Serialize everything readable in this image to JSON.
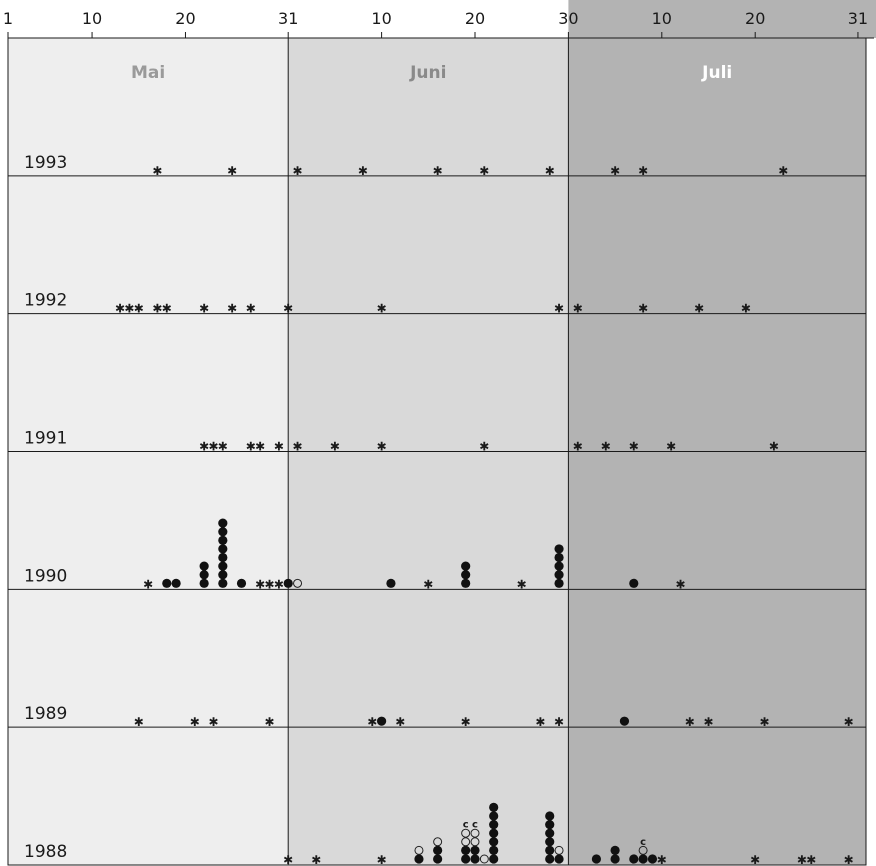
{
  "chart_data": {
    "type": "scatter",
    "months": [
      {
        "name": "Mai",
        "days": 31,
        "shade": "#eeeeee",
        "label_color": "#9a9a9a"
      },
      {
        "name": "Juni",
        "days": 30,
        "shade": "#d9d9d9",
        "label_color": "#8a8a8a"
      },
      {
        "name": "Juli",
        "days": 31,
        "shade": "#b3b3b3",
        "label_color": "#ffffff"
      }
    ],
    "tick_labels": [
      {
        "day": 1,
        "label": "1"
      },
      {
        "day": 10,
        "label": "10"
      },
      {
        "day": 20,
        "label": "20"
      },
      {
        "day": 31,
        "label": "31"
      },
      {
        "day": 41,
        "label": "10"
      },
      {
        "day": 51,
        "label": "20"
      },
      {
        "day": 61,
        "label": "30"
      },
      {
        "day": 71,
        "label": "10"
      },
      {
        "day": 81,
        "label": "20"
      },
      {
        "day": 92,
        "label": "31"
      }
    ],
    "line_color": "#1a1a1a",
    "years": [
      {
        "year": "1993",
        "points": [
          {
            "date": "1993-05-17",
            "kind": "star"
          },
          {
            "date": "1993-05-25",
            "kind": "star"
          },
          {
            "date": "1993-06-01",
            "kind": "star"
          },
          {
            "date": "1993-06-08",
            "kind": "star"
          },
          {
            "date": "1993-06-16",
            "kind": "star"
          },
          {
            "date": "1993-06-21",
            "kind": "star"
          },
          {
            "date": "1993-06-28",
            "kind": "star"
          },
          {
            "date": "1993-07-05",
            "kind": "star"
          },
          {
            "date": "1993-07-08",
            "kind": "star"
          },
          {
            "date": "1993-07-23",
            "kind": "star"
          }
        ]
      },
      {
        "year": "1992",
        "points": [
          {
            "date": "1992-05-13",
            "kind": "star"
          },
          {
            "date": "1992-05-14",
            "kind": "star"
          },
          {
            "date": "1992-05-15",
            "kind": "star"
          },
          {
            "date": "1992-05-17",
            "kind": "star"
          },
          {
            "date": "1992-05-18",
            "kind": "star"
          },
          {
            "date": "1992-05-22",
            "kind": "star"
          },
          {
            "date": "1992-05-25",
            "kind": "star"
          },
          {
            "date": "1992-05-27",
            "kind": "star"
          },
          {
            "date": "1992-05-31",
            "kind": "star"
          },
          {
            "date": "1992-06-10",
            "kind": "star"
          },
          {
            "date": "1992-06-29",
            "kind": "star"
          },
          {
            "date": "1992-07-01",
            "kind": "star"
          },
          {
            "date": "1992-07-08",
            "kind": "star"
          },
          {
            "date": "1992-07-14",
            "kind": "star"
          },
          {
            "date": "1992-07-19",
            "kind": "star"
          }
        ]
      },
      {
        "year": "1991",
        "points": [
          {
            "date": "1991-05-22",
            "kind": "star"
          },
          {
            "date": "1991-05-23",
            "kind": "star"
          },
          {
            "date": "1991-05-24",
            "kind": "star"
          },
          {
            "date": "1991-05-27",
            "kind": "star"
          },
          {
            "date": "1991-05-28",
            "kind": "star"
          },
          {
            "date": "1991-05-30",
            "kind": "star"
          },
          {
            "date": "1991-06-01",
            "kind": "star"
          },
          {
            "date": "1991-06-05",
            "kind": "star"
          },
          {
            "date": "1991-06-10",
            "kind": "star"
          },
          {
            "date": "1991-06-21",
            "kind": "star"
          },
          {
            "date": "1991-07-01",
            "kind": "star"
          },
          {
            "date": "1991-07-04",
            "kind": "star"
          },
          {
            "date": "1991-07-07",
            "kind": "star"
          },
          {
            "date": "1991-07-11",
            "kind": "star"
          },
          {
            "date": "1991-07-22",
            "kind": "star"
          }
        ]
      },
      {
        "year": "1990",
        "points": [
          {
            "date": "1990-05-16",
            "kind": "star"
          },
          {
            "date": "1990-05-18",
            "kind": "dot",
            "count": 1
          },
          {
            "date": "1990-05-19",
            "kind": "dot",
            "count": 1
          },
          {
            "date": "1990-05-22",
            "kind": "dot",
            "count": 3
          },
          {
            "date": "1990-05-24",
            "kind": "dot",
            "count": 8
          },
          {
            "date": "1990-05-26",
            "kind": "dot",
            "count": 1
          },
          {
            "date": "1990-05-28",
            "kind": "star"
          },
          {
            "date": "1990-05-29",
            "kind": "star"
          },
          {
            "date": "1990-05-30",
            "kind": "star"
          },
          {
            "date": "1990-05-31",
            "kind": "dot",
            "count": 1
          },
          {
            "date": "1990-06-01",
            "kind": "circle",
            "count": 1
          },
          {
            "date": "1990-06-11",
            "kind": "dot",
            "count": 1
          },
          {
            "date": "1990-06-15",
            "kind": "star"
          },
          {
            "date": "1990-06-19",
            "kind": "dot",
            "count": 3
          },
          {
            "date": "1990-06-25",
            "kind": "star"
          },
          {
            "date": "1990-06-29",
            "kind": "dot",
            "count": 5
          },
          {
            "date": "1990-07-07",
            "kind": "dot",
            "count": 1
          },
          {
            "date": "1990-07-12",
            "kind": "star"
          }
        ]
      },
      {
        "year": "1989",
        "points": [
          {
            "date": "1989-05-15",
            "kind": "star"
          },
          {
            "date": "1989-05-21",
            "kind": "star"
          },
          {
            "date": "1989-05-23",
            "kind": "star"
          },
          {
            "date": "1989-05-29",
            "kind": "star"
          },
          {
            "date": "1989-06-09",
            "kind": "star"
          },
          {
            "date": "1989-06-10",
            "kind": "dot",
            "count": 1
          },
          {
            "date": "1989-06-12",
            "kind": "star"
          },
          {
            "date": "1989-06-19",
            "kind": "star"
          },
          {
            "date": "1989-06-27",
            "kind": "star"
          },
          {
            "date": "1989-06-29",
            "kind": "star"
          },
          {
            "date": "1989-07-06",
            "kind": "dot",
            "count": 1
          },
          {
            "date": "1989-07-13",
            "kind": "star"
          },
          {
            "date": "1989-07-15",
            "kind": "star"
          },
          {
            "date": "1989-07-21",
            "kind": "star"
          },
          {
            "date": "1989-07-30",
            "kind": "star"
          }
        ]
      },
      {
        "year": "1988",
        "points": [
          {
            "date": "1988-05-31",
            "kind": "star"
          },
          {
            "date": "1988-06-03",
            "kind": "star"
          },
          {
            "date": "1988-06-10",
            "kind": "star"
          },
          {
            "date": "1988-06-14",
            "kind": "stack",
            "stack": [
              "dot",
              "circle"
            ]
          },
          {
            "date": "1988-06-16",
            "kind": "stack",
            "stack": [
              "dot",
              "dot",
              "circle"
            ]
          },
          {
            "date": "1988-06-19",
            "kind": "stack",
            "stack": [
              "dot",
              "dot",
              "circle",
              "circle",
              "c"
            ]
          },
          {
            "date": "1988-06-20",
            "kind": "stack",
            "stack": [
              "dot",
              "dot",
              "circle",
              "circle",
              "c"
            ]
          },
          {
            "date": "1988-06-21",
            "kind": "stack",
            "stack": [
              "circle"
            ]
          },
          {
            "date": "1988-06-22",
            "kind": "stack",
            "stack": [
              "dot",
              "dot",
              "dot",
              "dot",
              "dot",
              "dot",
              "dot"
            ]
          },
          {
            "date": "1988-06-28",
            "kind": "stack",
            "stack": [
              "dot",
              "dot",
              "dot",
              "dot",
              "dot",
              "dot"
            ]
          },
          {
            "date": "1988-06-29",
            "kind": "stack",
            "stack": [
              "dot",
              "circle"
            ]
          },
          {
            "date": "1988-07-03",
            "kind": "dot",
            "count": 1
          },
          {
            "date": "1988-07-05",
            "kind": "stack",
            "stack": [
              "dot",
              "dot"
            ]
          },
          {
            "date": "1988-07-07",
            "kind": "dot",
            "count": 1
          },
          {
            "date": "1988-07-08",
            "kind": "stack",
            "stack": [
              "dot",
              "circle",
              "c"
            ]
          },
          {
            "date": "1988-07-09",
            "kind": "dot",
            "count": 1
          },
          {
            "date": "1988-07-10",
            "kind": "star"
          },
          {
            "date": "1988-07-20",
            "kind": "star"
          },
          {
            "date": "1988-07-25",
            "kind": "star"
          },
          {
            "date": "1988-07-26",
            "kind": "star"
          },
          {
            "date": "1988-07-30",
            "kind": "star"
          }
        ]
      }
    ]
  }
}
